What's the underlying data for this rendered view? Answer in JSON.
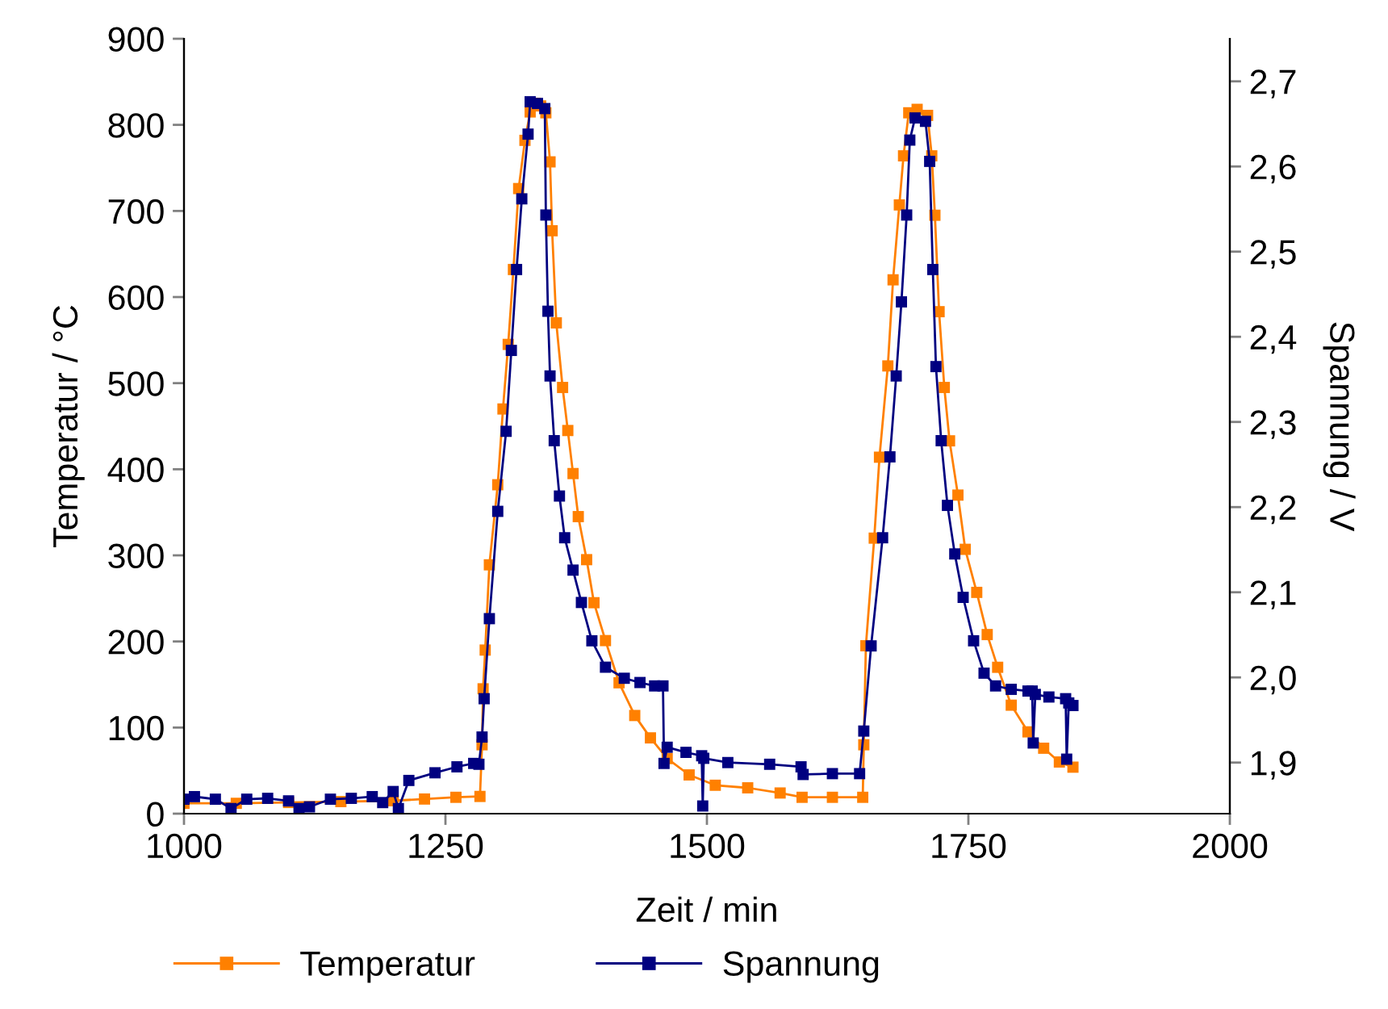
{
  "chart_data": {
    "type": "line",
    "xlabel": "Zeit / min",
    "ylabel": "Temperatur / °C",
    "y2label": "Spannung / V",
    "xlim": [
      1000,
      2000
    ],
    "xticks": [
      1000,
      1250,
      1500,
      1750,
      2000
    ],
    "ylim": [
      0,
      900
    ],
    "yticks": [
      0,
      100,
      200,
      300,
      400,
      500,
      600,
      700,
      800,
      900
    ],
    "y2lim": [
      1.84,
      2.75
    ],
    "y2ticks": [
      {
        "value": 1.9,
        "label": "1,9"
      },
      {
        "value": 2.0,
        "label": "2,0"
      },
      {
        "value": 2.1,
        "label": "2,1"
      },
      {
        "value": 2.2,
        "label": "2,2"
      },
      {
        "value": 2.3,
        "label": "2,3"
      },
      {
        "value": 2.4,
        "label": "2,4"
      },
      {
        "value": 2.5,
        "label": "2,5"
      },
      {
        "value": 2.6,
        "label": "2,6"
      },
      {
        "value": 2.7,
        "label": "2,7"
      }
    ],
    "marker": "square",
    "line_style": "solid",
    "legend": "bottom",
    "grid": false,
    "series": [
      {
        "name": "Temperatur",
        "color": "#ff8000",
        "x": [
          1000,
          1050,
          1100,
          1150,
          1200,
          1230,
          1260,
          1283,
          1285,
          1286,
          1288,
          1292,
          1300,
          1305,
          1310,
          1315,
          1320,
          1326,
          1331,
          1336,
          1341,
          1346,
          1350,
          1352,
          1356,
          1362,
          1367,
          1372,
          1377,
          1385,
          1392,
          1403,
          1416,
          1431,
          1446,
          1462,
          1483,
          1508,
          1539,
          1570,
          1591,
          1620,
          1649,
          1650,
          1652,
          1660,
          1665,
          1673,
          1678,
          1684,
          1688,
          1693,
          1701,
          1711,
          1715,
          1718,
          1722,
          1727,
          1732,
          1740,
          1747,
          1758,
          1768,
          1778,
          1791,
          1807,
          1822,
          1837,
          1850
        ],
        "values": [
          12,
          12,
          13,
          14,
          15,
          17,
          19,
          20,
          80,
          145,
          190,
          289,
          382,
          470,
          545,
          632,
          726,
          782,
          815,
          825,
          822,
          814,
          757,
          677,
          570,
          495,
          445,
          395,
          345,
          295,
          245,
          201,
          152,
          114,
          88,
          64,
          45,
          33,
          30,
          24,
          19,
          19,
          19,
          80,
          195,
          320,
          414,
          520,
          620,
          707,
          764,
          814,
          818,
          811,
          764,
          695,
          583,
          495,
          433,
          370,
          307,
          257,
          208,
          170,
          126,
          95,
          76,
          60,
          54
        ]
      },
      {
        "name": "Spannung",
        "color": "#000080",
        "axis": "y2",
        "x": [
          1000,
          1010,
          1030,
          1045,
          1060,
          1080,
          1100,
          1110,
          1120,
          1140,
          1160,
          1180,
          1190,
          1200,
          1205,
          1215,
          1240,
          1261,
          1277,
          1282,
          1285,
          1287,
          1292,
          1300,
          1308,
          1313,
          1318,
          1323,
          1329,
          1331,
          1338,
          1345,
          1346,
          1348,
          1350,
          1354,
          1359,
          1364,
          1372,
          1380,
          1390,
          1403,
          1421,
          1436,
          1450,
          1458,
          1459,
          1462,
          1480,
          1495,
          1496,
          1497,
          1520,
          1560,
          1590,
          1592,
          1620,
          1646,
          1650,
          1657,
          1668,
          1675,
          1681,
          1686,
          1691,
          1694,
          1699,
          1709,
          1713,
          1716,
          1719,
          1724,
          1730,
          1737,
          1745,
          1755,
          1765,
          1776,
          1791,
          1807,
          1811,
          1812,
          1814,
          1827,
          1843,
          1844,
          1846,
          1850
        ],
        "values": [
          1.857,
          1.86,
          1.857,
          1.846,
          1.857,
          1.858,
          1.855,
          1.846,
          1.848,
          1.857,
          1.858,
          1.86,
          1.853,
          1.866,
          1.846,
          1.879,
          1.888,
          1.895,
          1.899,
          1.898,
          1.93,
          1.975,
          2.069,
          2.195,
          2.289,
          2.384,
          2.479,
          2.562,
          2.638,
          2.676,
          2.674,
          2.668,
          2.543,
          2.43,
          2.354,
          2.278,
          2.213,
          2.164,
          2.126,
          2.088,
          2.043,
          2.012,
          1.999,
          1.994,
          1.99,
          1.99,
          1.899,
          1.918,
          1.912,
          1.908,
          1.849,
          1.905,
          1.9,
          1.898,
          1.895,
          1.886,
          1.887,
          1.887,
          1.937,
          2.037,
          2.164,
          2.259,
          2.354,
          2.441,
          2.543,
          2.631,
          2.657,
          2.653,
          2.606,
          2.479,
          2.365,
          2.278,
          2.202,
          2.145,
          2.094,
          2.043,
          2.005,
          1.99,
          1.986,
          1.984,
          1.984,
          1.923,
          1.98,
          1.977,
          1.975,
          1.904,
          1.97,
          1.967
        ]
      }
    ]
  }
}
